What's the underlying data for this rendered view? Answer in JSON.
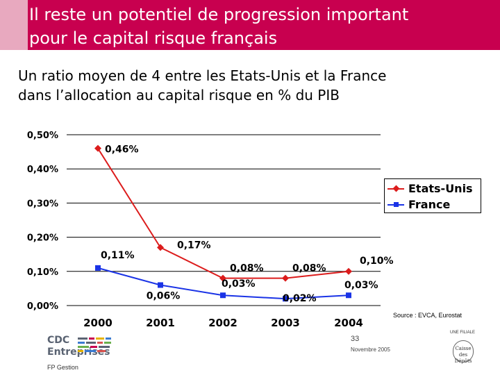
{
  "header": {
    "title_line1": "Il reste un potentiel de progression important",
    "title_line2": "pour le capital risque français",
    "subtitle_line1": "Un ratio moyen de 4 entre les Etats-Unis et la France",
    "subtitle_line2": "dans l’allocation au capital risque en % du PIB",
    "bar_color": "#c8004f",
    "accent_color": "#e8a9bf"
  },
  "chart_data": {
    "type": "line",
    "title": "",
    "xlabel": "",
    "ylabel": "",
    "categories": [
      "2000",
      "2001",
      "2002",
      "2003",
      "2004"
    ],
    "ylim": [
      0,
      0.5
    ],
    "y_ticks": [
      "0,00%",
      "0,10%",
      "0,20%",
      "0,30%",
      "0,40%",
      "0,50%"
    ],
    "grid": true,
    "legend_position": "right",
    "series": [
      {
        "name": "Etats-Unis",
        "color": "#dc1c1c",
        "marker": "diamond",
        "values": [
          0.46,
          0.17,
          0.08,
          0.08,
          0.1
        ],
        "labels": [
          "0,46%",
          "0,17%",
          "0,08%",
          "0,08%",
          "0,10%"
        ]
      },
      {
        "name": "France",
        "color": "#1a33e6",
        "marker": "square",
        "values": [
          0.11,
          0.06,
          0.03,
          0.02,
          0.03
        ],
        "labels": [
          "0,11%",
          "0,06%",
          "0,03%",
          "0,02%",
          "0,03%"
        ]
      }
    ]
  },
  "footer": {
    "source": "Source : EVCA, Eurostat",
    "page_number": "33",
    "date": "Novembre 2005",
    "logo_name_line1": "CDC",
    "logo_name_line2": "Entreprises",
    "logo_sub": "FP Gestion",
    "partner_label": "UNE FILIALE",
    "partner_name": "Caisse des Dépôts"
  }
}
